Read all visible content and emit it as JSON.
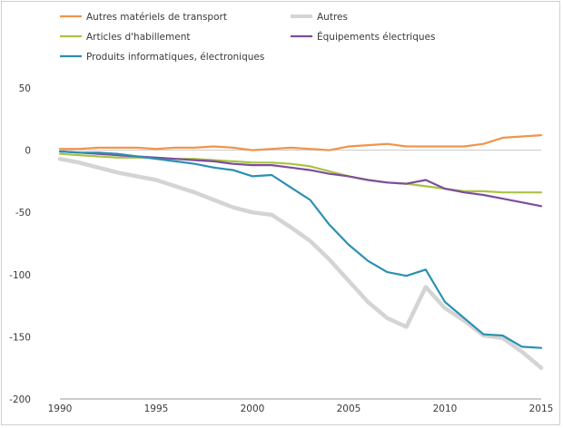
{
  "chart_data": {
    "type": "line",
    "title": "",
    "xlabel": "",
    "ylabel": "",
    "xlim": [
      1990,
      2015
    ],
    "ylim": [
      -200,
      50
    ],
    "x_ticks": [
      "1990",
      "1995",
      "2000",
      "2005",
      "2010",
      "2015"
    ],
    "y_ticks": [
      "50",
      "0",
      "-50",
      "-100",
      "-150",
      "-200"
    ],
    "grid": false,
    "legend_position": "top",
    "x": [
      1990,
      1991,
      1992,
      1993,
      1994,
      1995,
      1996,
      1997,
      1998,
      1999,
      2000,
      2001,
      2002,
      2003,
      2004,
      2005,
      2006,
      2007,
      2008,
      2009,
      2010,
      2011,
      2012,
      2013,
      2014,
      2015
    ],
    "series": [
      {
        "name": "Autres matériels de transport",
        "color": "#f0944b",
        "values": [
          1,
          1,
          2,
          2,
          2,
          1,
          2,
          2,
          3,
          2,
          0,
          1,
          2,
          1,
          0,
          3,
          4,
          5,
          3,
          3,
          3,
          3,
          5,
          10,
          11,
          12
        ]
      },
      {
        "name": "Autres",
        "color": "#d4d4d4",
        "values": [
          -7,
          -10,
          -14,
          -18,
          -21,
          -24,
          -29,
          -34,
          -40,
          -46,
          -50,
          -52,
          -62,
          -73,
          -88,
          -105,
          -122,
          -135,
          -142,
          -110,
          -127,
          -137,
          -149,
          -151,
          -162,
          -175
        ]
      },
      {
        "name": "Articles d'habillement",
        "color": "#a9c344",
        "values": [
          -3,
          -4,
          -5,
          -6,
          -6,
          -6,
          -7,
          -7,
          -8,
          -9,
          -10,
          -10,
          -11,
          -13,
          -17,
          -21,
          -24,
          -26,
          -27,
          -29,
          -31,
          -33,
          -33,
          -34,
          -34,
          -34
        ]
      },
      {
        "name": "Équipements électriques",
        "color": "#7e4d9c",
        "values": [
          -1,
          -2,
          -3,
          -4,
          -5,
          -6,
          -7,
          -8,
          -9,
          -11,
          -12,
          -12,
          -14,
          -16,
          -19,
          -21,
          -24,
          -26,
          -27,
          -24,
          -31,
          -34,
          -36,
          -39,
          -42,
          -45
        ]
      },
      {
        "name": "Produits informatiques, électroniques",
        "color": "#2b8fb3",
        "values": [
          -1,
          -2,
          -2,
          -3,
          -5,
          -7,
          -9,
          -11,
          -14,
          -16,
          -21,
          -20,
          -30,
          -40,
          -60,
          -76,
          -89,
          -98,
          -101,
          -96,
          -122,
          -135,
          -148,
          -149,
          -158,
          -159
        ]
      }
    ]
  }
}
